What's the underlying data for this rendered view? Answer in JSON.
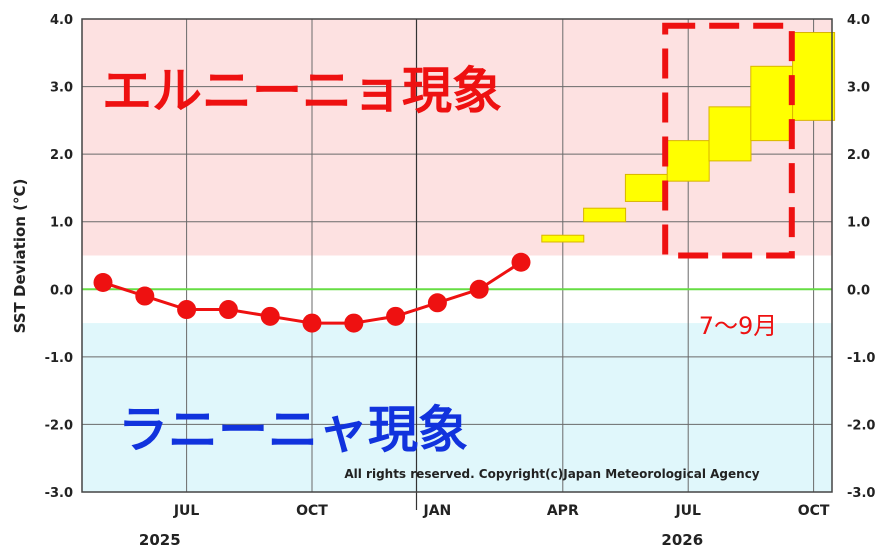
{
  "chart_data": {
    "type": "line",
    "title": "",
    "ylabel": "SST Deviation (°C)",
    "ylim": [
      -3.0,
      4.0
    ],
    "y_ticks": [
      "4.0",
      "3.0",
      "2.0",
      "1.0",
      "0.0",
      "-1.0",
      "-2.0",
      "-3.0"
    ],
    "month_labels": [
      {
        "label": "JUL",
        "month_index": 2
      },
      {
        "label": "OCT",
        "month_index": 5
      },
      {
        "label": "JAN",
        "month_index": 8
      },
      {
        "label": "APR",
        "month_index": 11
      },
      {
        "label": "JUL",
        "month_index": 14
      },
      {
        "label": "OCT",
        "month_index": 17
      }
    ],
    "year_labels": [
      {
        "label": "2025",
        "month_index": 1
      },
      {
        "label": "2026",
        "month_index": 13.5
      }
    ],
    "series": [
      {
        "type": "observed",
        "month_index": [
          0,
          1,
          2,
          3,
          4,
          5,
          6,
          7,
          8,
          9,
          10
        ],
        "values": [
          0.1,
          -0.1,
          -0.3,
          -0.3,
          -0.4,
          -0.5,
          -0.5,
          -0.4,
          -0.2,
          0.0,
          0.4
        ],
        "color": "#ee1111"
      },
      {
        "type": "forecast_range",
        "month_index": [
          11,
          12,
          13,
          14,
          15,
          16,
          17
        ],
        "low": [
          0.7,
          1.0,
          1.3,
          1.6,
          1.9,
          2.2,
          2.5
        ],
        "high": [
          0.8,
          1.2,
          1.7,
          2.2,
          2.7,
          3.3,
          3.8
        ],
        "color": "#ffff00"
      }
    ],
    "regions": {
      "el_nino": {
        "label": "エルニーニョ現象",
        "threshold": 0.5,
        "color": "#fde1e1",
        "text_color": "#ee1111"
      },
      "la_nina": {
        "label": "ラニーニャ現象",
        "threshold": -0.5,
        "color": "#e0f7fb",
        "text_color": "#1133dd"
      }
    },
    "highlight": {
      "label": "7～9月",
      "month_from": 14,
      "month_to": 16,
      "y_from": 0.5,
      "y_to": 3.9,
      "color": "#ee1111"
    },
    "zero_line_color": "#66dd44",
    "grid": true,
    "copyright": "All rights reserved. Copyright(c)Japan Meteorological Agency"
  }
}
